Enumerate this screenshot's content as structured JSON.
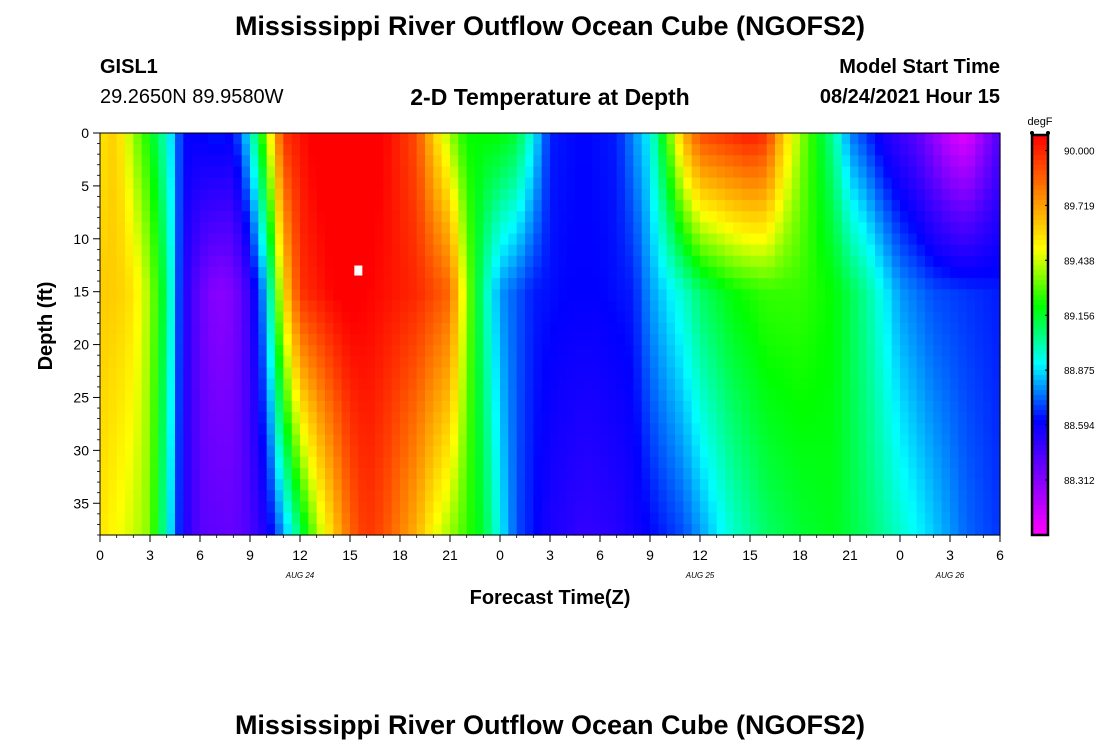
{
  "header": {
    "title": "Mississippi River Outflow Ocean Cube (NGOFS2)",
    "station_id": "GISL1",
    "station_coords": "29.2650N  89.9580W",
    "model_label": "Model Start Time",
    "model_start": "08/24/2021 Hour 15"
  },
  "footer": {
    "title_repeat": "Mississippi River Outflow Ocean Cube (NGOFS2)"
  },
  "chart_data": {
    "type": "heatmap",
    "title": "2-D Temperature at Depth",
    "xlabel": "Forecast Time(Z)",
    "ylabel": "Depth (ft)",
    "x_tick_labels": [
      "0",
      "3",
      "6",
      "9",
      "12",
      "15",
      "18",
      "21",
      "0",
      "3",
      "6",
      "9",
      "12",
      "15",
      "18",
      "21",
      "0",
      "3",
      "6"
    ],
    "x_hours_since_start_of_aug24": [
      0,
      3,
      6,
      9,
      12,
      15,
      18,
      21,
      24,
      27,
      30,
      33,
      36,
      39,
      42,
      45,
      48,
      51,
      54
    ],
    "xlim_hours": [
      0,
      54
    ],
    "date_labels": [
      {
        "label": "AUG 24",
        "hour": 12
      },
      {
        "label": "AUG 25",
        "hour": 36
      },
      {
        "label": "AUG 26",
        "hour": 51
      }
    ],
    "y_ticks": [
      0,
      5,
      10,
      15,
      20,
      25,
      30,
      35
    ],
    "ylim": [
      0,
      38
    ],
    "y_inverted": true,
    "colorbar": {
      "unit": "degF",
      "tick_labels": [
        "90.000",
        "89.719",
        "89.438",
        "89.156",
        "88.875",
        "88.594",
        "88.312"
      ],
      "range": [
        88.03,
        90.08
      ]
    },
    "marker": {
      "hour": 15.5,
      "depth": 13
    },
    "colors": {
      "stops": [
        "#ff00ff",
        "#7f00ff",
        "#0000ff",
        "#00ffff",
        "#00ff00",
        "#ffff00",
        "#ff8000",
        "#ff0000"
      ]
    }
  }
}
